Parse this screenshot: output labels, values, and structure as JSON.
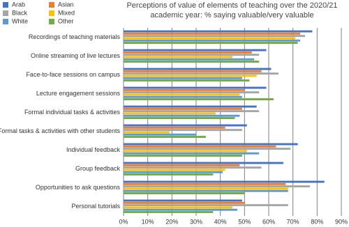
{
  "chart_data": {
    "type": "hbar",
    "title": "Perceptions of value of elements of teaching over the 2020/21 academic year: % saying valuable/very valuable",
    "categories": [
      "Recordings of teaching materials",
      "Online streaming of live lectures",
      "Face-to-face sessions on campus",
      "Lecture engagement sessions",
      "Formal individual tasks & activities",
      "Formal tasks & activities with other students",
      "Individual feedback",
      "Group feedback",
      "Opportunities to ask questions",
      "Personal tutorials"
    ],
    "series": [
      {
        "name": "Arab",
        "color": "#4472c4",
        "values": [
          78,
          59,
          61,
          59,
          55,
          51,
          72,
          66,
          83,
          49
        ]
      },
      {
        "name": "Asian",
        "color": "#ed7d31",
        "values": [
          73,
          53,
          57,
          50,
          49,
          42,
          63,
          48,
          67,
          50
        ]
      },
      {
        "name": "Black",
        "color": "#a5a5a5",
        "values": [
          75,
          56,
          64,
          56,
          56,
          49,
          69,
          57,
          77,
          68
        ]
      },
      {
        "name": "Mixed",
        "color": "#ffc000",
        "values": [
          71,
          45,
          55,
          48,
          38,
          19,
          51,
          42,
          68,
          45
        ]
      },
      {
        "name": "White",
        "color": "#5b9bd5",
        "values": [
          73,
          54,
          49,
          49,
          48,
          30,
          56,
          41,
          68,
          47
        ]
      },
      {
        "name": "Other",
        "color": "#70ad47",
        "values": [
          72,
          56,
          52,
          62,
          46,
          34,
          49,
          37,
          50,
          37
        ]
      }
    ],
    "xlim": [
      0,
      90
    ],
    "xticks": [
      {
        "value": 0,
        "label": "0%"
      },
      {
        "value": 10,
        "label": "10%"
      },
      {
        "value": 20,
        "label": "20%"
      },
      {
        "value": 30,
        "label": "30%"
      },
      {
        "value": 40,
        "label": "40%"
      },
      {
        "value": 50,
        "label": "50%"
      },
      {
        "value": 60,
        "label": "60%"
      },
      {
        "value": 70,
        "label": "70%"
      },
      {
        "value": 80,
        "label": "80%"
      },
      {
        "value": 90,
        "label": "90%"
      }
    ],
    "grid": true
  }
}
